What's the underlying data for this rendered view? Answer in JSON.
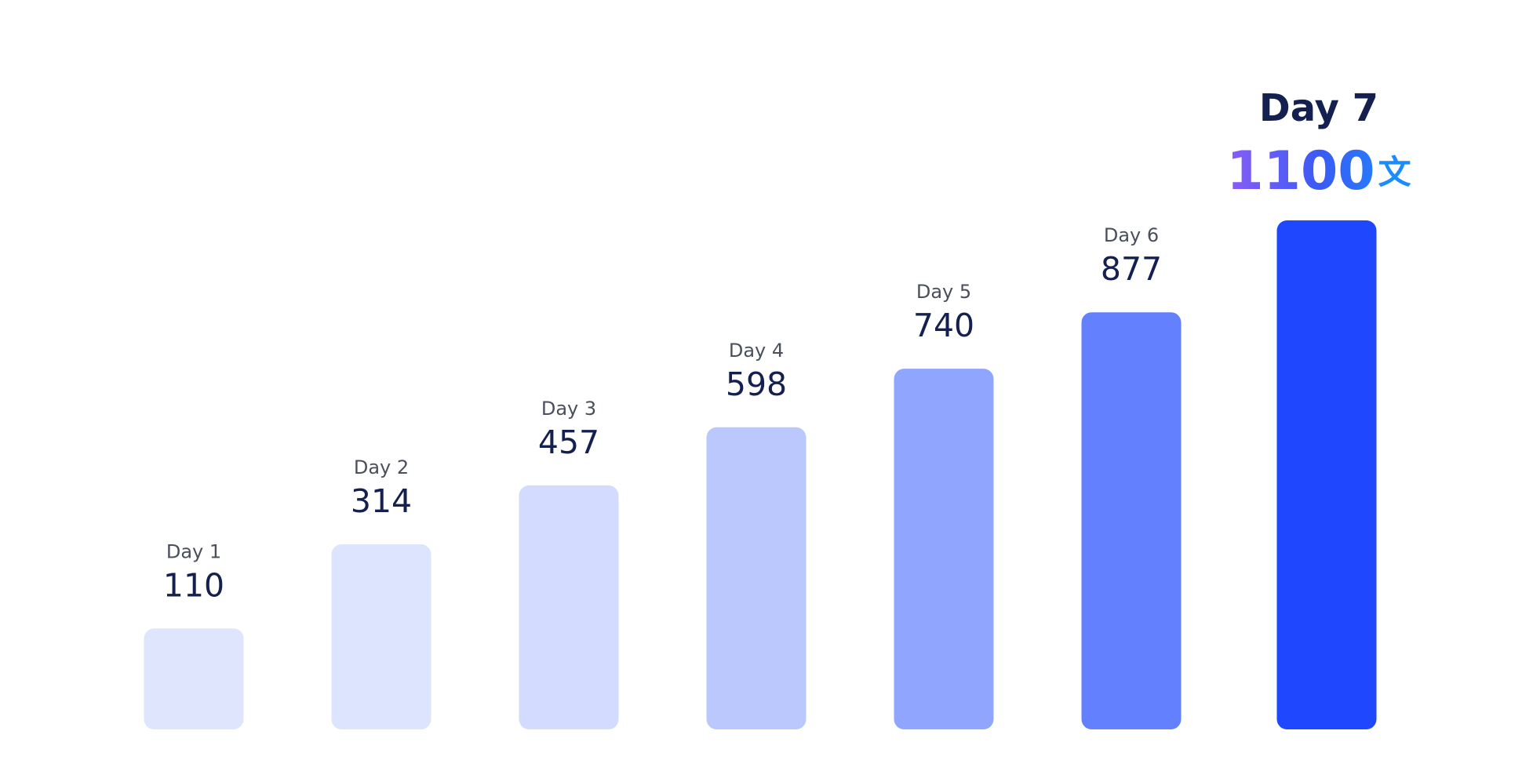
{
  "chart_data": {
    "type": "bar",
    "categories": [
      "Day 1",
      "Day 2",
      "Day 3",
      "Day 4",
      "Day 5",
      "Day 6",
      "Day 7"
    ],
    "values": [
      110,
      314,
      457,
      598,
      740,
      877,
      1100
    ],
    "unit": "文",
    "colors": [
      "#dfe5fd",
      "#dde4fe",
      "#d3dcfe",
      "#bac8fe",
      "#8fa5fe",
      "#6381fe",
      "#1f47fe"
    ],
    "ylim": [
      -135,
      1100
    ]
  }
}
